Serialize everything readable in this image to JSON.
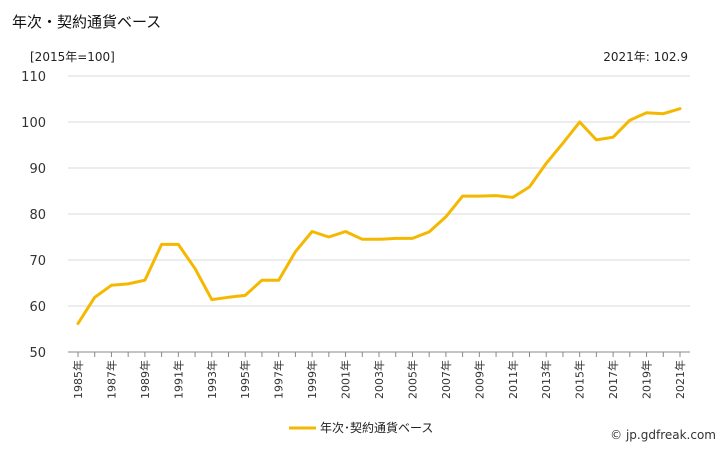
{
  "header": {
    "title": "年次・契約通貨ベース",
    "unit": "[2015年=100]",
    "latest": "2021年: 102.9"
  },
  "footer": {
    "credit": "© jp.gdfreak.com"
  },
  "colors": {
    "line": "#f5b800",
    "grid": "#d9d9d9"
  },
  "chart_data": {
    "type": "line",
    "x": [
      "1985年",
      "1986年",
      "1987年",
      "1988年",
      "1989年",
      "1990年",
      "1991年",
      "1992年",
      "1993年",
      "1994年",
      "1995年",
      "1996年",
      "1997年",
      "1998年",
      "1999年",
      "2000年",
      "2001年",
      "2002年",
      "2003年",
      "2004年",
      "2005年",
      "2006年",
      "2007年",
      "2008年",
      "2009年",
      "2010年",
      "2011年",
      "2012年",
      "2013年",
      "2014年",
      "2015年",
      "2016年",
      "2017年",
      "2018年",
      "2019年",
      "2020年",
      "2021年"
    ],
    "x_tick_labels": [
      "1985年",
      "1987年",
      "1989年",
      "1991年",
      "1993年",
      "1995年",
      "1997年",
      "1999年",
      "2001年",
      "2003年",
      "2005年",
      "2007年",
      "2009年",
      "2011年",
      "2013年",
      "2015年",
      "2017年",
      "2019年",
      "2021年"
    ],
    "series": [
      {
        "name": "年次･契約通貨ベース",
        "values": [
          56.2,
          61.9,
          64.5,
          64.8,
          65.6,
          73.4,
          73.4,
          68.1,
          61.4,
          61.9,
          62.3,
          65.6,
          65.6,
          71.8,
          76.2,
          75.0,
          76.2,
          74.5,
          74.5,
          74.7,
          74.7,
          76.1,
          79.4,
          83.9,
          83.9,
          84.0,
          83.6,
          85.9,
          91.0,
          95.4,
          100.0,
          96.1,
          96.7,
          100.4,
          102.0,
          101.8,
          102.9
        ]
      }
    ],
    "ylim": [
      50,
      110
    ],
    "yticks": [
      50,
      60,
      70,
      80,
      90,
      100,
      110
    ],
    "grid": true,
    "legend_position": "bottom-center"
  }
}
